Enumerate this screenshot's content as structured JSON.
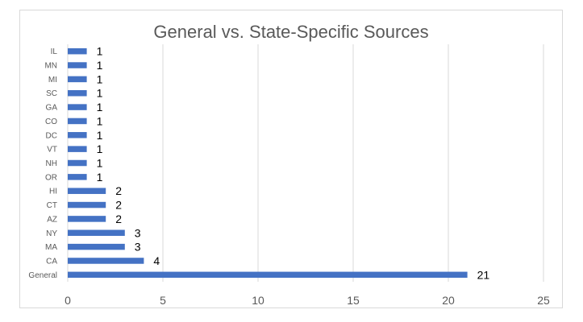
{
  "chart_data": {
    "type": "bar",
    "orientation": "horizontal",
    "title": "General vs. State-Specific Sources",
    "categories": [
      "General",
      "CA",
      "MA",
      "NY",
      "AZ",
      "CT",
      "HI",
      "OR",
      "NH",
      "VT",
      "DC",
      "CO",
      "GA",
      "SC",
      "MI",
      "MN",
      "IL"
    ],
    "values": [
      21,
      4,
      3,
      3,
      2,
      2,
      2,
      1,
      1,
      1,
      1,
      1,
      1,
      1,
      1,
      1,
      1
    ],
    "xlim": [
      0,
      25
    ],
    "xticks": [
      0,
      5,
      10,
      15,
      20,
      25
    ],
    "xlabel": "",
    "ylabel": "",
    "grid": "vertical",
    "legend": "none",
    "data_labels": true,
    "bar_color": "#4472c4"
  }
}
